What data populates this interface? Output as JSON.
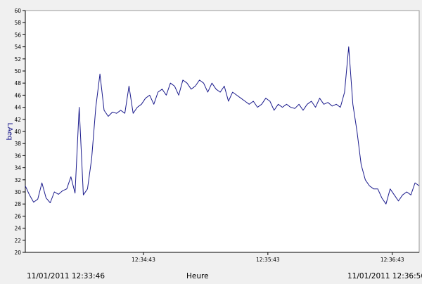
{
  "footer": {
    "start_time": "11/01/2011 12:33:46",
    "axis_label": "Heure",
    "end_time": "11/01/2011 12:36:56"
  },
  "colors": {
    "line": "#1a1a8c",
    "plot_background": "#ffffff",
    "page_background": "#f0f0f0",
    "axis": "#000000"
  },
  "chart_data": {
    "type": "line",
    "title": "",
    "xlabel": "Heure",
    "ylabel": "LAeq",
    "xlim": [
      "12:33:46",
      "12:36:56"
    ],
    "ylim": [
      20,
      60
    ],
    "ytick_step": 2,
    "xtick_labels": [
      "12:34:43",
      "12:35:43",
      "12:36:43"
    ],
    "grid": false,
    "legend": "none",
    "series": [
      {
        "x": [
          "12:33:46",
          "12:33:48",
          "12:33:50",
          "12:33:52",
          "12:33:54",
          "12:33:56",
          "12:33:58",
          "12:34:00",
          "12:34:02",
          "12:34:04",
          "12:34:06",
          "12:34:08",
          "12:34:10",
          "12:34:12",
          "12:34:14",
          "12:34:16",
          "12:34:18",
          "12:34:20",
          "12:34:22",
          "12:34:24",
          "12:34:26",
          "12:34:28",
          "12:34:30",
          "12:34:32",
          "12:34:34",
          "12:34:36",
          "12:34:38",
          "12:34:40",
          "12:34:42",
          "12:34:44",
          "12:34:46",
          "12:34:48",
          "12:34:50",
          "12:34:52",
          "12:34:54",
          "12:34:56",
          "12:34:58",
          "12:35:00",
          "12:35:02",
          "12:35:04",
          "12:35:06",
          "12:35:08",
          "12:35:10",
          "12:35:12",
          "12:35:14",
          "12:35:16",
          "12:35:18",
          "12:35:20",
          "12:35:22",
          "12:35:24",
          "12:35:26",
          "12:35:28",
          "12:35:30",
          "12:35:32",
          "12:35:34",
          "12:35:36",
          "12:35:38",
          "12:35:40",
          "12:35:42",
          "12:35:44",
          "12:35:46",
          "12:35:48",
          "12:35:50",
          "12:35:52",
          "12:35:54",
          "12:35:56",
          "12:35:58",
          "12:36:00",
          "12:36:02",
          "12:36:04",
          "12:36:06",
          "12:36:08",
          "12:36:10",
          "12:36:12",
          "12:36:14",
          "12:36:16",
          "12:36:18",
          "12:36:20",
          "12:36:22",
          "12:36:24",
          "12:36:26",
          "12:36:28",
          "12:36:30",
          "12:36:32",
          "12:36:34",
          "12:36:36",
          "12:36:38",
          "12:36:40",
          "12:36:42",
          "12:36:44",
          "12:36:46",
          "12:36:48",
          "12:36:50",
          "12:36:52",
          "12:36:54",
          "12:36:56"
        ],
        "values": [
          31.0,
          29.5,
          28.3,
          28.8,
          31.5,
          29.0,
          28.2,
          30.0,
          29.6,
          30.2,
          30.5,
          32.5,
          29.8,
          44.0,
          29.5,
          30.5,
          35.5,
          44.0,
          49.5,
          43.5,
          42.5,
          43.2,
          43.0,
          43.5,
          43.0,
          47.5,
          43.0,
          44.0,
          44.5,
          45.5,
          46.0,
          44.5,
          46.5,
          47.0,
          46.0,
          48.0,
          47.5,
          46.0,
          48.5,
          48.0,
          47.0,
          47.5,
          48.5,
          48.0,
          46.5,
          48.0,
          47.0,
          46.5,
          47.5,
          45.0,
          46.5,
          46.0,
          45.5,
          45.0,
          44.5,
          45.0,
          44.0,
          44.5,
          45.5,
          45.0,
          43.5,
          44.5,
          44.0,
          44.5,
          44.0,
          43.8,
          44.5,
          43.5,
          44.5,
          45.0,
          44.0,
          45.5,
          44.5,
          44.8,
          44.2,
          44.5,
          44.0,
          46.5,
          54.0,
          44.5,
          40.0,
          34.5,
          32.0,
          31.0,
          30.5,
          30.5,
          29.0,
          28.0,
          30.5,
          29.5,
          28.5,
          29.5,
          30.0,
          29.5,
          31.5,
          31.0
        ]
      }
    ]
  }
}
